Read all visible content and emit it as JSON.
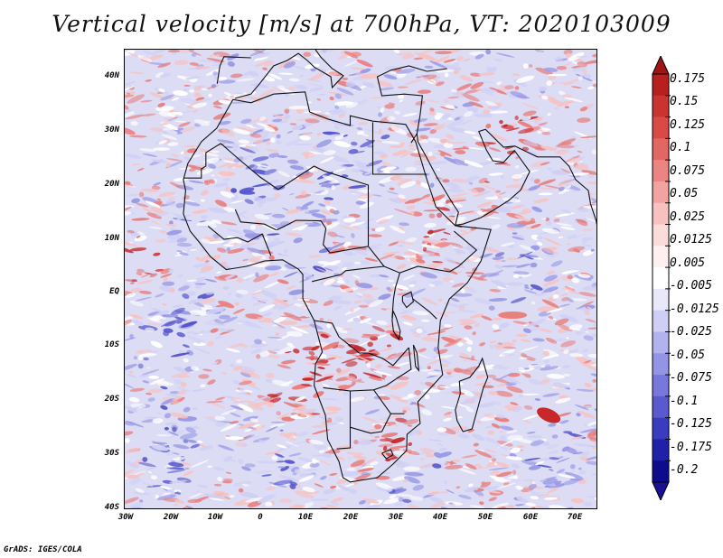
{
  "title": "Vertical velocity [m/s] at 700hPa, VT: 2020103009",
  "footer": "GrADS: IGES/COLA",
  "map": {
    "lat_labels": [
      "40N",
      "30N",
      "20N",
      "10N",
      "EQ",
      "10S",
      "20S",
      "30S",
      "40S"
    ],
    "lon_labels": [
      "30W",
      "20W",
      "10W",
      "0",
      "10E",
      "20E",
      "30E",
      "40E",
      "50E",
      "60E",
      "70E"
    ],
    "lat_values": [
      40,
      30,
      20,
      10,
      0,
      -10,
      -20,
      -30,
      -40
    ],
    "lon_values": [
      -30,
      -20,
      -10,
      0,
      10,
      20,
      30,
      40,
      50,
      60,
      70
    ],
    "lat_range": [
      -40,
      45
    ],
    "lon_range": [
      -30,
      75
    ]
  },
  "colorbar": {
    "labels": [
      "0.175",
      "0.15",
      "0.125",
      "0.1",
      "0.075",
      "0.05",
      "0.025",
      "0.0125",
      "0.005",
      "-0.005",
      "-0.0125",
      "-0.025",
      "-0.05",
      "-0.075",
      "-0.1",
      "-0.125",
      "-0.175",
      "-0.2"
    ],
    "colors": [
      "#b8201f",
      "#c93330",
      "#d94a47",
      "#e26664",
      "#ea8583",
      "#f1a3a1",
      "#f6c1bf",
      "#fadcdb",
      "#fff0f0",
      "#ffffff",
      "#e8e8fa",
      "#cfcff5",
      "#b2b2ef",
      "#9494e6",
      "#7777dc",
      "#5a5ad0",
      "#3b3bbf",
      "#2020a8",
      "#0c0c8c"
    ],
    "top_arrow_color": "#a01414",
    "bottom_arrow_color": "#1b0f96"
  },
  "field_colors": {
    "ocean_base": "#dcdcf5",
    "up_strong": "#c8282a",
    "up_mid": "#e8807e",
    "up_weak": "#f6c3c2",
    "down_weak": "#cfd0f4",
    "down_mid": "#9a9ae6",
    "down_strong": "#5656cc",
    "border": "#111111"
  }
}
